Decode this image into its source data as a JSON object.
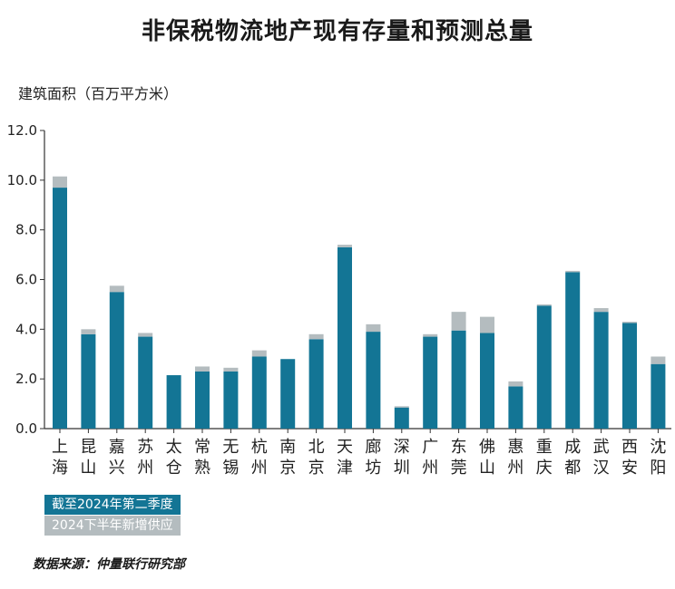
{
  "colors": {
    "existing": "#137595",
    "supply": "#b4bcbf"
  },
  "chart_data": {
    "type": "bar",
    "stacked": true,
    "title": "非保税物流地产现有存量和预测总量",
    "ylabel": "建筑面积（百万平方米）",
    "xlabel": "",
    "ylim": [
      0,
      12
    ],
    "yticks": [
      "0.0",
      "2.0",
      "4.0",
      "6.0",
      "8.0",
      "10.0",
      "12.0"
    ],
    "grid": false,
    "legend_position": "bottom-left",
    "categories": [
      "上海",
      "昆山",
      "嘉兴",
      "苏州",
      "太仓",
      "常熟",
      "无锡",
      "杭州",
      "南京",
      "北京",
      "天津",
      "廊坊",
      "深圳",
      "广州",
      "东莞",
      "佛山",
      "惠州",
      "重庆",
      "成都",
      "武汉",
      "西安",
      "沈阳"
    ],
    "series": [
      {
        "name": "截至2024年第二季度",
        "values": [
          9.7,
          3.8,
          5.5,
          3.7,
          2.15,
          2.3,
          2.3,
          2.9,
          2.8,
          3.6,
          7.3,
          3.9,
          0.85,
          3.7,
          3.95,
          3.85,
          1.7,
          4.95,
          6.3,
          4.7,
          4.25,
          2.6
        ]
      },
      {
        "name": "2024下半年新增供应",
        "values": [
          0.45,
          0.2,
          0.25,
          0.15,
          0.0,
          0.2,
          0.15,
          0.25,
          0.0,
          0.2,
          0.1,
          0.3,
          0.05,
          0.1,
          0.75,
          0.65,
          0.2,
          0.05,
          0.05,
          0.15,
          0.05,
          0.3
        ]
      }
    ]
  },
  "source": "数据来源：仲量联行研究部"
}
